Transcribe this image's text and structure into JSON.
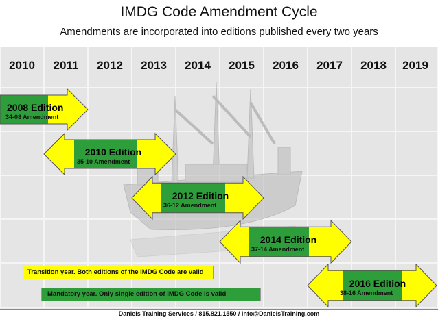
{
  "title": "IMDG Code Amendment Cycle",
  "subtitle": "Amendments are incorporated into editions published every two years",
  "years": [
    "2010",
    "2011",
    "2012",
    "2013",
    "2014",
    "2015",
    "2016",
    "2017",
    "2018",
    "2019"
  ],
  "editions": [
    {
      "title": "2008 Edition",
      "amendment": "34-08 Amendment"
    },
    {
      "title": "2010 Edition",
      "amendment": "35-10 Amendment"
    },
    {
      "title": "2012 Edition",
      "amendment": "36-12 Amendment"
    },
    {
      "title": "2014 Edition",
      "amendment": "37-14 Amendment"
    },
    {
      "title": "2016 Edition",
      "amendment": "38-16 Amendment"
    }
  ],
  "legend": {
    "transition": "Transition year.  Both editions of the IMDG Code are valid",
    "mandatory": "Mandatory year.  Only single edition of IMDG Code is valid"
  },
  "footer": "Daniels Training Services / 815.821.1550 / Info@DanielsTraining.com",
  "colors": {
    "transition": "#ffff00",
    "mandatory": "#2e9e3a",
    "grid_cell": "#e2e2e2",
    "grid_line": "#ffffff"
  },
  "background_image": "cargo-ship-icon"
}
